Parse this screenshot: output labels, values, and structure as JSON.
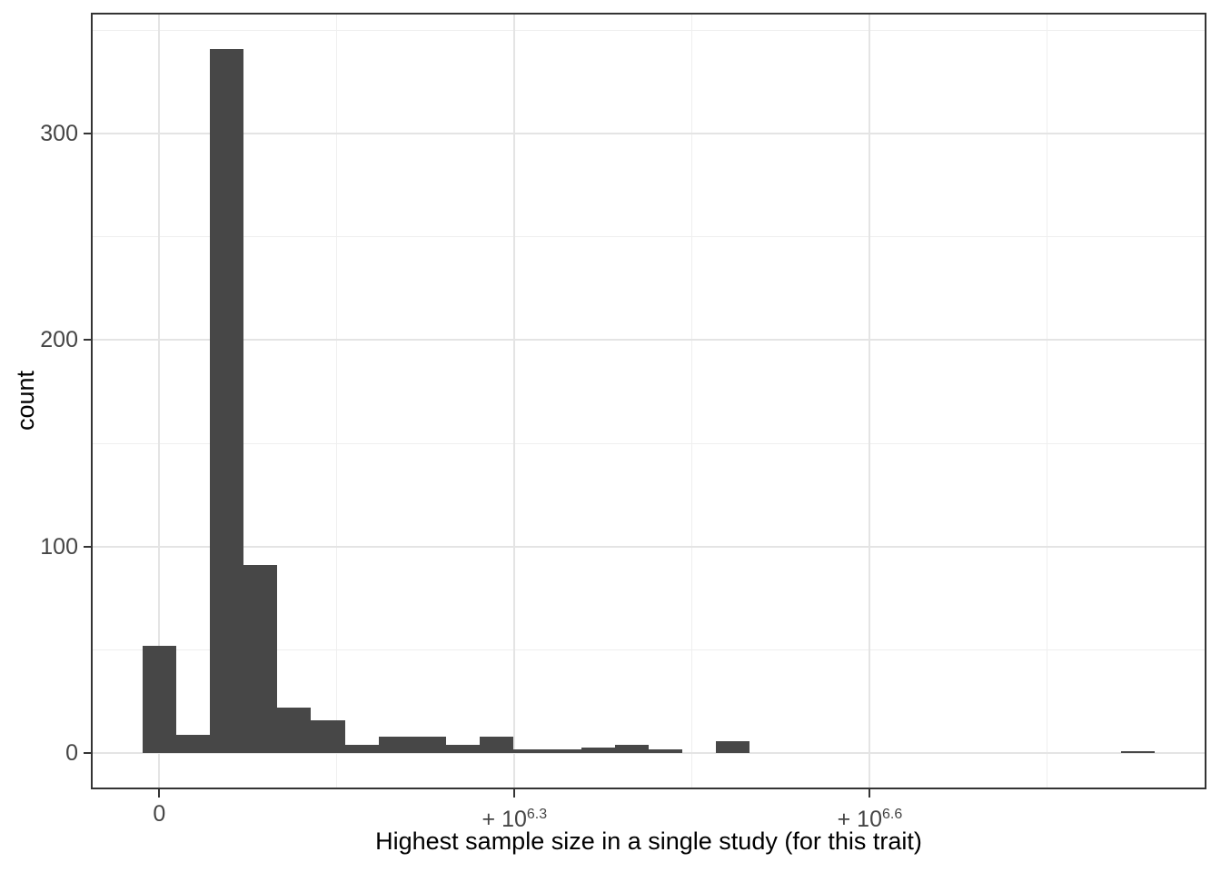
{
  "chart_data": {
    "type": "bar",
    "subtype": "histogram",
    "title": "",
    "xlabel": "Highest sample size in a single study (for this trait)",
    "ylabel": "count",
    "bar_color": "#474747",
    "grid": "on",
    "legend": "none",
    "xlim": [
      -380000,
      5890000
    ],
    "ylim": [
      -17,
      358
    ],
    "bin_width": 190000,
    "x_ticks": [
      {
        "value": 0,
        "label": "0"
      },
      {
        "value": 2000000,
        "prefix": "+ 10",
        "exponent": "6.3"
      },
      {
        "value": 4000000,
        "prefix": "+ 10",
        "exponent": "6.6"
      }
    ],
    "x_minor_gridlines": [
      1000000,
      3000000,
      5000000
    ],
    "y_ticks": [
      0,
      100,
      200,
      300
    ],
    "y_minor_gridlines": [
      50,
      150,
      250,
      350
    ],
    "bars": [
      {
        "center": 0,
        "count": 52
      },
      {
        "center": 190000,
        "count": 9
      },
      {
        "center": 380000,
        "count": 341
      },
      {
        "center": 570000,
        "count": 91
      },
      {
        "center": 760000,
        "count": 22
      },
      {
        "center": 950000,
        "count": 16
      },
      {
        "center": 1140000,
        "count": 4
      },
      {
        "center": 1330000,
        "count": 8
      },
      {
        "center": 1520000,
        "count": 8
      },
      {
        "center": 1710000,
        "count": 4
      },
      {
        "center": 1900000,
        "count": 8
      },
      {
        "center": 2090000,
        "count": 2
      },
      {
        "center": 2280000,
        "count": 2
      },
      {
        "center": 2470000,
        "count": 3
      },
      {
        "center": 2660000,
        "count": 4
      },
      {
        "center": 2850000,
        "count": 2
      },
      {
        "center": 3230000,
        "count": 6
      },
      {
        "center": 5510000,
        "count": 1
      }
    ],
    "colors": {
      "panel_border": "#343434",
      "tick_mark": "#343434",
      "major_gridline": "#e4e4e4",
      "minor_gridline": "#efefef",
      "tick_text": "#454545",
      "title_text": "#000000"
    }
  }
}
